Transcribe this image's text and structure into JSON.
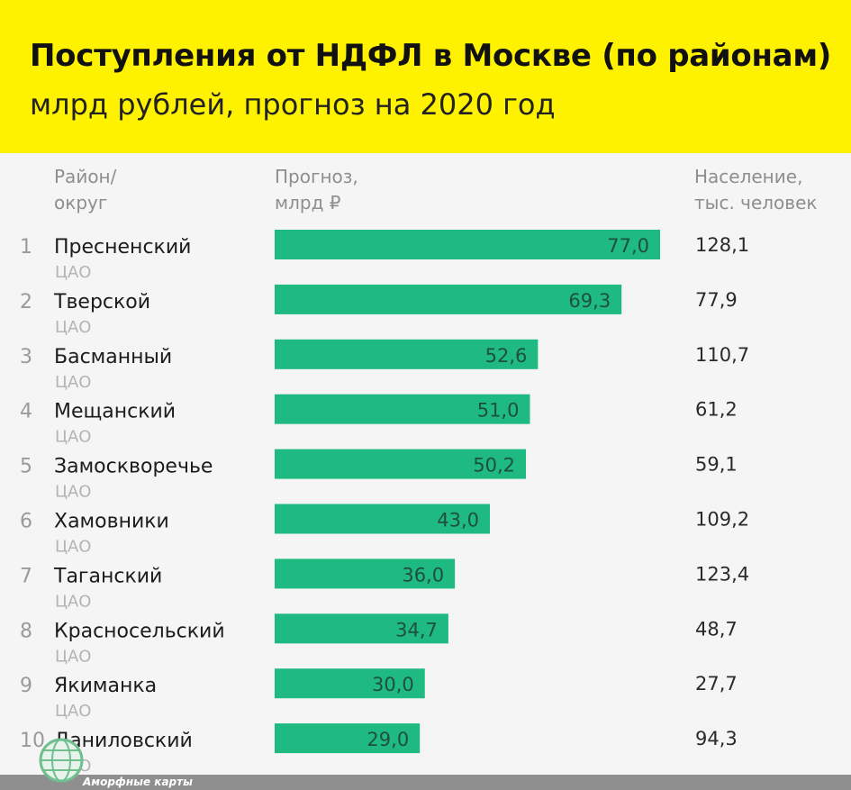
{
  "header": {
    "title": "Поступления от НДФЛ в Москве (по районам)",
    "subtitle": "млрд рублей, прогноз на 2020 год"
  },
  "columns": {
    "district_line1": "Район/",
    "district_line2": "округ",
    "forecast_line1": "Прогноз,",
    "forecast_line2": "млрд ₽",
    "population_line1": "Население,",
    "population_line2": "тыс. человек"
  },
  "footer": {
    "text": "Аморфные карты"
  },
  "colors": {
    "header_bg": "#fff200",
    "bar": "#1fba82",
    "bar_label": "#1f4f3f",
    "background": "#f5f5f5"
  },
  "chart_data": {
    "type": "bar",
    "orientation": "horizontal",
    "rows": [
      {
        "rank": "1",
        "district": "Пресненский",
        "okrug": "ЦАО",
        "value": 77.0,
        "label": "77,0",
        "population": "128,1"
      },
      {
        "rank": "2",
        "district": "Тверской",
        "okrug": "ЦАО",
        "value": 69.3,
        "label": "69,3",
        "population": "77,9"
      },
      {
        "rank": "3",
        "district": "Басманный",
        "okrug": "ЦАО",
        "value": 52.6,
        "label": "52,6",
        "population": "110,7"
      },
      {
        "rank": "4",
        "district": "Мещанский",
        "okrug": "ЦАО",
        "value": 51.0,
        "label": "51,0",
        "population": "61,2"
      },
      {
        "rank": "5",
        "district": "Замоскворечье",
        "okrug": "ЦАО",
        "value": 50.2,
        "label": "50,2",
        "population": "59,1"
      },
      {
        "rank": "6",
        "district": "Хамовники",
        "okrug": "ЦАО",
        "value": 43.0,
        "label": "43,0",
        "population": "109,2"
      },
      {
        "rank": "7",
        "district": "Таганский",
        "okrug": "ЦАО",
        "value": 36.0,
        "label": "36,0",
        "population": "123,4"
      },
      {
        "rank": "8",
        "district": "Красносельский",
        "okrug": "ЦАО",
        "value": 34.7,
        "label": "34,7",
        "population": "48,7"
      },
      {
        "rank": "9",
        "district": "Якиманка",
        "okrug": "ЦАО",
        "value": 30.0,
        "label": "30,0",
        "population": "27,7"
      },
      {
        "rank": "10",
        "district": "Даниловский",
        "okrug": "ЦАО",
        "value": 29.0,
        "label": "29,0",
        "population": "94,3"
      }
    ],
    "xlim": [
      0,
      77.0
    ],
    "grid": false,
    "legend": "none"
  }
}
